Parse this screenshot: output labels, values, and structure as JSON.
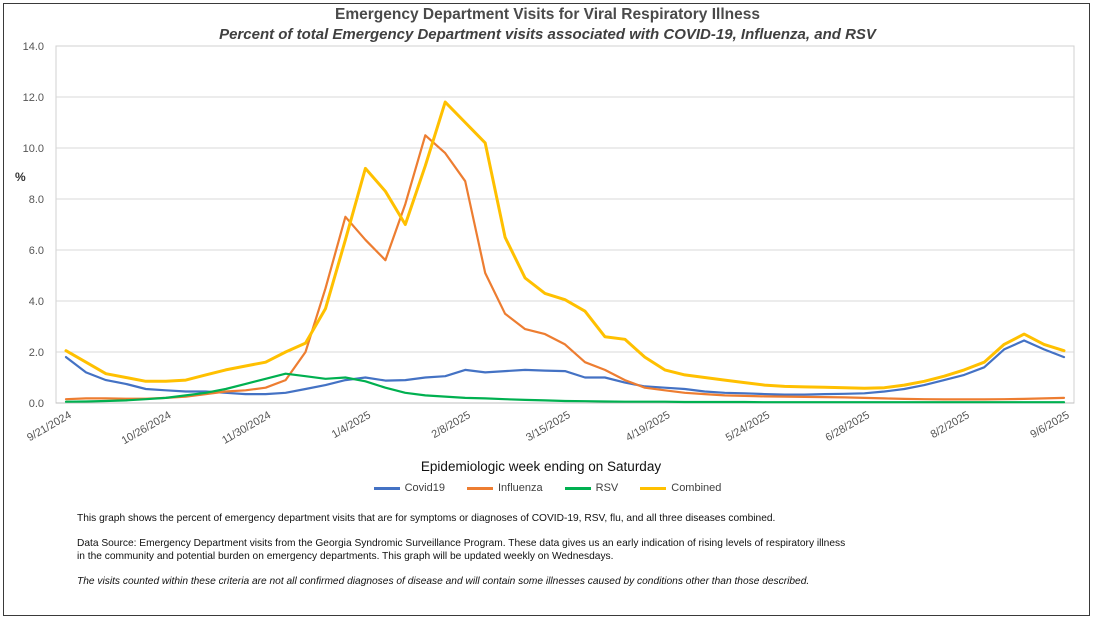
{
  "chart_data": {
    "type": "line",
    "title": "Emergency Department Visits for Viral Respiratory Illness",
    "subtitle": "Percent of total Emergency Department visits associated with COVID-19, Influenza, and RSV",
    "xlabel": "Epidemiologic week ending on Saturday",
    "ylabel": "%",
    "ylim": [
      0,
      14
    ],
    "yticks": [
      "0.0",
      "2.0",
      "4.0",
      "6.0",
      "8.0",
      "10.0",
      "12.0",
      "14.0"
    ],
    "grid": "horizontal",
    "legend_position": "bottom",
    "x": [
      "9/21/2024",
      "9/28/2024",
      "10/5/2024",
      "10/12/2024",
      "10/19/2024",
      "10/26/2024",
      "11/2/2024",
      "11/9/2024",
      "11/16/2024",
      "11/23/2024",
      "11/30/2024",
      "12/7/2024",
      "12/14/2024",
      "12/21/2024",
      "12/28/2024",
      "1/4/2025",
      "1/11/2025",
      "1/18/2025",
      "1/25/2025",
      "2/1/2025",
      "2/8/2025",
      "2/15/2025",
      "2/22/2025",
      "3/1/2025",
      "3/8/2025",
      "3/15/2025",
      "3/22/2025",
      "3/29/2025",
      "4/5/2025",
      "4/12/2025",
      "4/19/2025",
      "4/26/2025",
      "5/3/2025",
      "5/10/2025",
      "5/17/2025",
      "5/24/2025",
      "5/31/2025",
      "6/7/2025",
      "6/14/2025",
      "6/21/2025",
      "6/28/2025",
      "7/5/2025",
      "7/12/2025",
      "7/19/2025",
      "7/26/2025",
      "8/2/2025",
      "8/9/2025",
      "8/16/2025",
      "8/23/2025",
      "8/30/2025",
      "9/6/2025"
    ],
    "xtick_labels": [
      "9/21/2024",
      "10/26/2024",
      "11/30/2024",
      "1/4/2025",
      "2/8/2025",
      "3/15/2025",
      "4/19/2025",
      "5/24/2025",
      "6/28/2025",
      "8/2/2025",
      "9/6/2025"
    ],
    "series": [
      {
        "name": "Covid19",
        "color": "#4472c4",
        "values": [
          1.8,
          1.2,
          0.9,
          0.75,
          0.55,
          0.5,
          0.45,
          0.45,
          0.4,
          0.35,
          0.35,
          0.4,
          0.55,
          0.7,
          0.9,
          1.0,
          0.88,
          0.9,
          1.0,
          1.05,
          1.3,
          1.2,
          1.25,
          1.3,
          1.27,
          1.25,
          1.0,
          1.0,
          0.8,
          0.65,
          0.6,
          0.55,
          0.45,
          0.4,
          0.38,
          0.35,
          0.33,
          0.33,
          0.35,
          0.36,
          0.38,
          0.45,
          0.55,
          0.7,
          0.9,
          1.1,
          1.4,
          2.1,
          2.45,
          2.1,
          1.8
        ]
      },
      {
        "name": "Influenza",
        "color": "#ed7d31",
        "values": [
          0.15,
          0.18,
          0.18,
          0.17,
          0.17,
          0.2,
          0.25,
          0.35,
          0.45,
          0.5,
          0.6,
          0.9,
          2.0,
          4.5,
          7.3,
          6.4,
          5.6,
          7.8,
          10.5,
          9.8,
          8.7,
          5.1,
          3.5,
          2.9,
          2.7,
          2.3,
          1.6,
          1.3,
          0.9,
          0.6,
          0.5,
          0.4,
          0.35,
          0.3,
          0.28,
          0.26,
          0.25,
          0.24,
          0.23,
          0.22,
          0.2,
          0.18,
          0.16,
          0.15,
          0.14,
          0.14,
          0.14,
          0.15,
          0.16,
          0.18,
          0.2
        ]
      },
      {
        "name": "RSV",
        "color": "#00b050",
        "values": [
          0.05,
          0.06,
          0.08,
          0.1,
          0.15,
          0.2,
          0.3,
          0.4,
          0.55,
          0.75,
          0.95,
          1.15,
          1.05,
          0.95,
          1.0,
          0.85,
          0.6,
          0.4,
          0.3,
          0.25,
          0.2,
          0.18,
          0.15,
          0.12,
          0.1,
          0.08,
          0.07,
          0.06,
          0.05,
          0.05,
          0.05,
          0.04,
          0.04,
          0.04,
          0.04,
          0.03,
          0.03,
          0.03,
          0.03,
          0.03,
          0.03,
          0.03,
          0.03,
          0.03,
          0.03,
          0.03,
          0.03,
          0.03,
          0.03,
          0.03,
          0.03
        ]
      },
      {
        "name": "Combined",
        "color": "#ffc000",
        "values": [
          2.05,
          1.6,
          1.15,
          1.0,
          0.85,
          0.85,
          0.9,
          1.1,
          1.3,
          1.45,
          1.6,
          2.0,
          2.35,
          3.7,
          6.4,
          9.2,
          8.3,
          7.0,
          9.3,
          11.8,
          11.0,
          10.2,
          6.5,
          4.9,
          4.3,
          4.05,
          3.6,
          2.6,
          2.5,
          1.8,
          1.3,
          1.1,
          1.0,
          0.9,
          0.8,
          0.7,
          0.65,
          0.63,
          0.62,
          0.6,
          0.58,
          0.6,
          0.7,
          0.85,
          1.05,
          1.3,
          1.6,
          2.3,
          2.7,
          2.3,
          2.05
        ]
      }
    ]
  },
  "notes": {
    "p1": "This graph shows the percent of emergency department visits that are for symptoms or diagnoses of COVID-19, RSV, flu, and all three diseases combined.",
    "p2a": "Data Source: Emergency Department visits from the Georgia Syndromic Surveillance Program. These data gives us an early indication of rising levels of respiratory illness",
    "p2b": "in the community and potential burden on emergency departments. This graph will be updated weekly on Wednesdays.",
    "p3": "The visits counted within these criteria are not all confirmed diagnoses of disease and will contain some illnesses caused by conditions other than those described."
  }
}
